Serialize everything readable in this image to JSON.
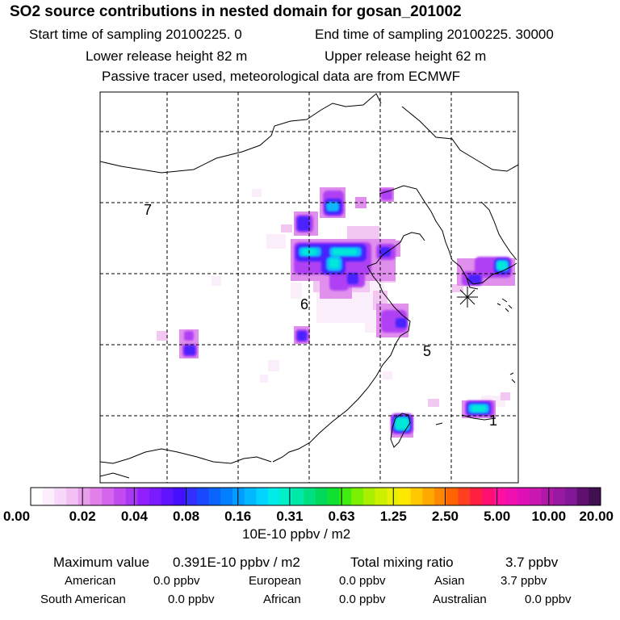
{
  "header": {
    "title": "SO2 source contributions in nested domain for gosan_201002",
    "start_time": "Start time of sampling 20100225.     0",
    "end_time": "End time of sampling 20100225. 30000",
    "lower_height": "Lower release height   82 m",
    "upper_height": "Upper release height   62 m",
    "tracer_note": "Passive tracer used, meteorological data are from ECMWF"
  },
  "chart_data": {
    "type": "heatmap",
    "title": "SO2 source contributions in nested domain for gosan_201002",
    "region_labels": [
      "7",
      "6",
      "5",
      "1"
    ],
    "receptor_marker": "asterisk",
    "colorbar": {
      "unit": "10E-10 ppbv / m2",
      "ticks": [
        "0.00",
        "0.02",
        "0.04",
        "0.08",
        "0.16",
        "0.31",
        "0.63",
        "1.25",
        "2.50",
        "5.00",
        "10.00",
        "20.00"
      ],
      "colors": [
        "#ffffff",
        "#fdeefd",
        "#f8d8f8",
        "#f2c0f2",
        "#e89ee8",
        "#e080e8",
        "#d466ee",
        "#c24cf2",
        "#a838f4",
        "#9020ff",
        "#7a1cff",
        "#5e14ff",
        "#4410ff",
        "#3030ff",
        "#1848ff",
        "#0c64ff",
        "#0080ff",
        "#009cff",
        "#00b8ff",
        "#00d4ff",
        "#00ece8",
        "#00f0c8",
        "#00e8a8",
        "#00e080",
        "#00d858",
        "#10e030",
        "#40ec10",
        "#78f000",
        "#a8f000",
        "#ccf000",
        "#e8f000",
        "#ffe800",
        "#ffc800",
        "#ffa800",
        "#ff8800",
        "#ff6400",
        "#ff4020",
        "#ff2040",
        "#ff1070",
        "#ff10a0",
        "#f010b0",
        "#e010b8",
        "#c818b0",
        "#b018a8",
        "#9818a0",
        "#801898",
        "#601070",
        "#401050"
      ]
    },
    "stats": {
      "max_label": "Maximum value",
      "max_value": "0.391E-10 ppbv / m2",
      "total_label": "Total mixing ratio",
      "total_value": "3.7 ppbv",
      "sources": [
        {
          "name": "American",
          "value": "0.0 ppbv"
        },
        {
          "name": "European",
          "value": "0.0 ppbv"
        },
        {
          "name": "Asian",
          "value": "3.7 ppbv"
        },
        {
          "name": "South American",
          "value": "0.0 ppbv"
        },
        {
          "name": "African",
          "value": "0.0 ppbv"
        },
        {
          "name": "Australian",
          "value": "0.0 ppbv"
        }
      ]
    }
  }
}
